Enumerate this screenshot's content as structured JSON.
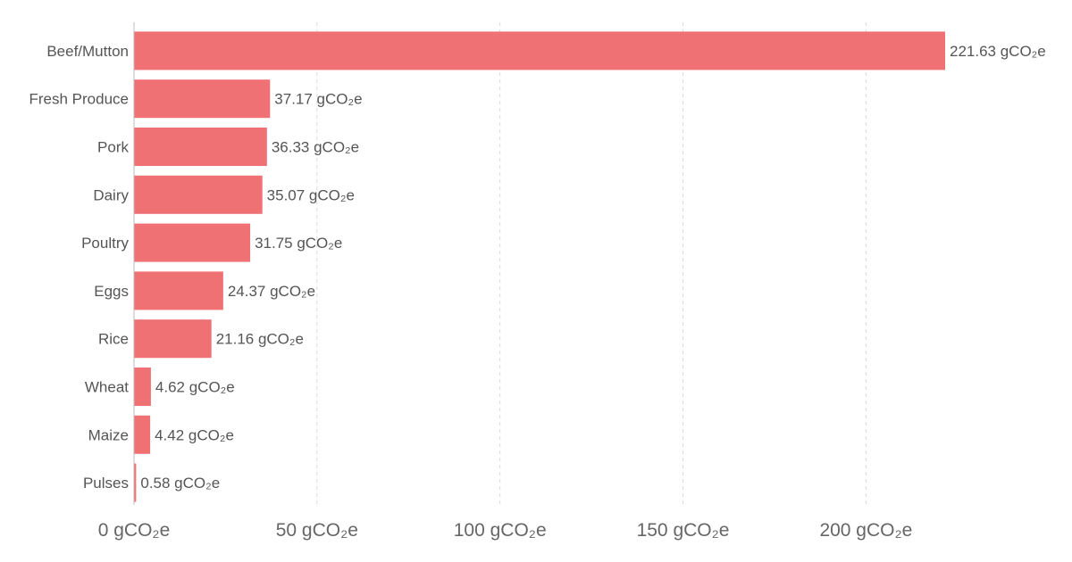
{
  "chart_data": {
    "type": "bar",
    "orientation": "horizontal",
    "categories": [
      "Beef/Mutton",
      "Fresh Produce",
      "Pork",
      "Dairy",
      "Poultry",
      "Eggs",
      "Rice",
      "Wheat",
      "Maize",
      "Pulses"
    ],
    "values": [
      221.63,
      37.17,
      36.33,
      35.07,
      31.75,
      24.37,
      21.16,
      4.62,
      4.42,
      0.58
    ],
    "value_labels": [
      "221.63 gCO₂e",
      "37.17 gCO₂e",
      "36.33 gCO₂e",
      "35.07 gCO₂e",
      "31.75 gCO₂e",
      "24.37 gCO₂e",
      "21.16 gCO₂e",
      "4.62 gCO₂e",
      "4.42 gCO₂e",
      "0.58 gCO₂e"
    ],
    "x_ticks": [
      0,
      50,
      100,
      150,
      200
    ],
    "x_tick_labels": [
      "0 gCO₂e",
      "50 gCO₂e",
      "100 gCO₂e",
      "150 gCO₂e",
      "200 gCO₂e"
    ],
    "xlim": [
      0,
      221.63
    ],
    "title": "",
    "xlabel": "",
    "ylabel": "",
    "grid": true,
    "legend": "none",
    "colors": {
      "bar": "#f07174",
      "grid": "#d9d9d9",
      "axis": "#bbbbbb",
      "text": "#555555"
    }
  }
}
